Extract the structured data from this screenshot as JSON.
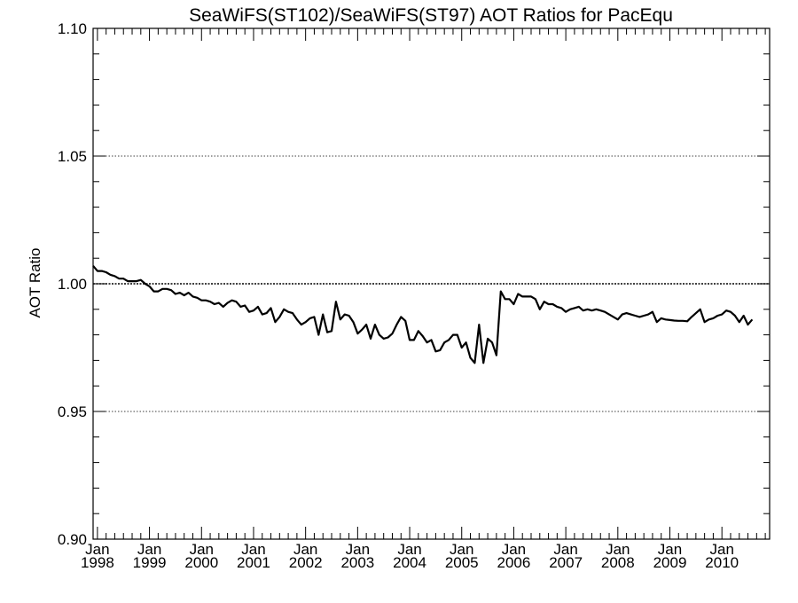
{
  "chart_data": {
    "type": "line",
    "title": "SeaWiFS(ST102)/SeaWiFS(ST97)  AOT Ratios for PacEqu",
    "ylabel": "AOT Ratio",
    "xlabel": "",
    "ylim": [
      0.9,
      1.1
    ],
    "xlim": [
      "1997-12",
      "2010-12"
    ],
    "y_ticks": [
      {
        "value": 0.9,
        "label": "0.90"
      },
      {
        "value": 0.95,
        "label": "0.95"
      },
      {
        "value": 1.0,
        "label": "1.00"
      },
      {
        "value": 1.05,
        "label": "1.05"
      },
      {
        "value": 1.1,
        "label": "1.10"
      }
    ],
    "x_ticks": [
      {
        "value": "1998-01",
        "month": "Jan",
        "year": "1998"
      },
      {
        "value": "1999-01",
        "month": "Jan",
        "year": "1999"
      },
      {
        "value": "2000-01",
        "month": "Jan",
        "year": "2000"
      },
      {
        "value": "2001-01",
        "month": "Jan",
        "year": "2001"
      },
      {
        "value": "2002-01",
        "month": "Jan",
        "year": "2002"
      },
      {
        "value": "2003-01",
        "month": "Jan",
        "year": "2003"
      },
      {
        "value": "2004-01",
        "month": "Jan",
        "year": "2004"
      },
      {
        "value": "2005-01",
        "month": "Jan",
        "year": "2005"
      },
      {
        "value": "2006-01",
        "month": "Jan",
        "year": "2006"
      },
      {
        "value": "2007-01",
        "month": "Jan",
        "year": "2007"
      },
      {
        "value": "2008-01",
        "month": "Jan",
        "year": "2008"
      },
      {
        "value": "2009-01",
        "month": "Jan",
        "year": "2009"
      },
      {
        "value": "2010-01",
        "month": "Jan",
        "year": "2010"
      }
    ],
    "reference_line": 1.0,
    "grid": "dotted major y ticks",
    "series": [
      {
        "values": [
          [
            "1997-12",
            1.007
          ],
          [
            "1998-01",
            1.005
          ],
          [
            "1998-02",
            1.005
          ],
          [
            "1998-03",
            1.0045
          ],
          [
            "1998-04",
            1.0035
          ],
          [
            "1998-05",
            1.003
          ],
          [
            "1998-06",
            1.002
          ],
          [
            "1998-07",
            1.002
          ],
          [
            "1998-08",
            1.001
          ],
          [
            "1998-09",
            1.001
          ],
          [
            "1998-10",
            1.001
          ],
          [
            "1998-11",
            1.0015
          ],
          [
            "1998-12",
            1.0
          ],
          [
            "1999-01",
            0.999
          ],
          [
            "1999-02",
            0.997
          ],
          [
            "1999-03",
            0.997
          ],
          [
            "1999-04",
            0.998
          ],
          [
            "1999-05",
            0.998
          ],
          [
            "1999-06",
            0.9975
          ],
          [
            "1999-07",
            0.996
          ],
          [
            "1999-08",
            0.9965
          ],
          [
            "1999-09",
            0.9955
          ],
          [
            "1999-10",
            0.9965
          ],
          [
            "1999-11",
            0.995
          ],
          [
            "1999-12",
            0.9945
          ],
          [
            "2000-01",
            0.9935
          ],
          [
            "2000-02",
            0.9935
          ],
          [
            "2000-03",
            0.993
          ],
          [
            "2000-04",
            0.992
          ],
          [
            "2000-05",
            0.9925
          ],
          [
            "2000-06",
            0.991
          ],
          [
            "2000-07",
            0.9925
          ],
          [
            "2000-08",
            0.9935
          ],
          [
            "2000-09",
            0.993
          ],
          [
            "2000-10",
            0.991
          ],
          [
            "2000-11",
            0.9915
          ],
          [
            "2000-12",
            0.989
          ],
          [
            "2001-01",
            0.9895
          ],
          [
            "2001-02",
            0.991
          ],
          [
            "2001-03",
            0.988
          ],
          [
            "2001-04",
            0.9885
          ],
          [
            "2001-05",
            0.9905
          ],
          [
            "2001-06",
            0.985
          ],
          [
            "2001-07",
            0.987
          ],
          [
            "2001-08",
            0.99
          ],
          [
            "2001-09",
            0.989
          ],
          [
            "2001-10",
            0.9885
          ],
          [
            "2001-11",
            0.986
          ],
          [
            "2001-12",
            0.984
          ],
          [
            "2002-01",
            0.985
          ],
          [
            "2002-02",
            0.9865
          ],
          [
            "2002-03",
            0.987
          ],
          [
            "2002-04",
            0.98
          ],
          [
            "2002-05",
            0.988
          ],
          [
            "2002-06",
            0.981
          ],
          [
            "2002-07",
            0.9815
          ],
          [
            "2002-08",
            0.993
          ],
          [
            "2002-09",
            0.986
          ],
          [
            "2002-10",
            0.988
          ],
          [
            "2002-11",
            0.9875
          ],
          [
            "2002-12",
            0.985
          ],
          [
            "2003-01",
            0.9805
          ],
          [
            "2003-02",
            0.982
          ],
          [
            "2003-03",
            0.984
          ],
          [
            "2003-04",
            0.9785
          ],
          [
            "2003-05",
            0.984
          ],
          [
            "2003-06",
            0.98
          ],
          [
            "2003-07",
            0.9785
          ],
          [
            "2003-08",
            0.979
          ],
          [
            "2003-09",
            0.9805
          ],
          [
            "2003-10",
            0.984
          ],
          [
            "2003-11",
            0.987
          ],
          [
            "2003-12",
            0.9855
          ],
          [
            "2004-01",
            0.978
          ],
          [
            "2004-02",
            0.978
          ],
          [
            "2004-03",
            0.9815
          ],
          [
            "2004-04",
            0.9795
          ],
          [
            "2004-05",
            0.977
          ],
          [
            "2004-06",
            0.978
          ],
          [
            "2004-07",
            0.9735
          ],
          [
            "2004-08",
            0.974
          ],
          [
            "2004-09",
            0.977
          ],
          [
            "2004-10",
            0.978
          ],
          [
            "2004-11",
            0.98
          ],
          [
            "2004-12",
            0.98
          ],
          [
            "2005-01",
            0.975
          ],
          [
            "2005-02",
            0.977
          ],
          [
            "2005-03",
            0.971
          ],
          [
            "2005-04",
            0.969
          ],
          [
            "2005-05",
            0.984
          ],
          [
            "2005-06",
            0.969
          ],
          [
            "2005-07",
            0.9785
          ],
          [
            "2005-08",
            0.977
          ],
          [
            "2005-09",
            0.972
          ],
          [
            "2005-10",
            0.997
          ],
          [
            "2005-11",
            0.994
          ],
          [
            "2005-12",
            0.994
          ],
          [
            "2006-01",
            0.992
          ],
          [
            "2006-02",
            0.996
          ],
          [
            "2006-03",
            0.995
          ],
          [
            "2006-04",
            0.995
          ],
          [
            "2006-05",
            0.995
          ],
          [
            "2006-06",
            0.994
          ],
          [
            "2006-07",
            0.99
          ],
          [
            "2006-08",
            0.993
          ],
          [
            "2006-09",
            0.992
          ],
          [
            "2006-10",
            0.992
          ],
          [
            "2006-11",
            0.991
          ],
          [
            "2006-12",
            0.9905
          ],
          [
            "2007-01",
            0.989
          ],
          [
            "2007-02",
            0.99
          ],
          [
            "2007-03",
            0.9905
          ],
          [
            "2007-04",
            0.991
          ],
          [
            "2007-05",
            0.9895
          ],
          [
            "2007-06",
            0.99
          ],
          [
            "2007-07",
            0.9895
          ],
          [
            "2007-08",
            0.99
          ],
          [
            "2007-09",
            0.9895
          ],
          [
            "2007-10",
            0.989
          ],
          [
            "2007-11",
            0.988
          ],
          [
            "2007-12",
            0.987
          ],
          [
            "2008-01",
            0.986
          ],
          [
            "2008-02",
            0.988
          ],
          [
            "2008-03",
            0.9885
          ],
          [
            "2008-04",
            0.988
          ],
          [
            "2008-05",
            0.9875
          ],
          [
            "2008-06",
            0.987
          ],
          [
            "2008-07",
            0.9875
          ],
          [
            "2008-08",
            0.988
          ],
          [
            "2008-09",
            0.989
          ],
          [
            "2008-10",
            0.985
          ],
          [
            "2008-11",
            0.9865
          ],
          [
            "2008-12",
            0.986
          ],
          [
            "2009-01",
            0.9858
          ],
          [
            "2009-02",
            0.9856
          ],
          [
            "2009-03",
            0.9855
          ],
          [
            "2009-04",
            0.9855
          ],
          [
            "2009-05",
            0.9853
          ],
          [
            "2009-06",
            0.987
          ],
          [
            "2009-07",
            0.9885
          ],
          [
            "2009-08",
            0.99
          ],
          [
            "2009-09",
            0.985
          ],
          [
            "2009-10",
            0.986
          ],
          [
            "2009-11",
            0.9865
          ],
          [
            "2009-12",
            0.9875
          ],
          [
            "2010-01",
            0.988
          ],
          [
            "2010-02",
            0.9895
          ],
          [
            "2010-03",
            0.989
          ],
          [
            "2010-04",
            0.9875
          ],
          [
            "2010-05",
            0.985
          ],
          [
            "2010-06",
            0.9875
          ],
          [
            "2010-07",
            0.984
          ],
          [
            "2010-08",
            0.986
          ]
        ]
      }
    ]
  }
}
